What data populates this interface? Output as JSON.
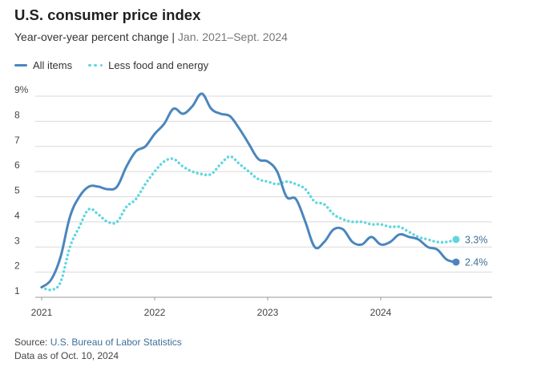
{
  "chart_data": {
    "type": "line",
    "title": "U.S. consumer price index",
    "subtitle": "Year-over-year percent change",
    "subtitle_range": "Jan. 2021–Sept. 2024",
    "ylim": [
      1,
      9
    ],
    "y_ticks": [
      "1",
      "2",
      "3",
      "4",
      "5",
      "6",
      "7",
      "8",
      "9%"
    ],
    "y_tick_values": [
      1,
      2,
      3,
      4,
      5,
      6,
      7,
      8,
      9
    ],
    "x_ticks": [
      "2021",
      "2022",
      "2023",
      "2024"
    ],
    "x_tick_values": [
      2021,
      2022,
      2023,
      2024
    ],
    "x": [
      "2021-01",
      "2021-02",
      "2021-03",
      "2021-04",
      "2021-05",
      "2021-06",
      "2021-07",
      "2021-08",
      "2021-09",
      "2021-10",
      "2021-11",
      "2021-12",
      "2022-01",
      "2022-02",
      "2022-03",
      "2022-04",
      "2022-05",
      "2022-06",
      "2022-07",
      "2022-08",
      "2022-09",
      "2022-10",
      "2022-11",
      "2022-12",
      "2023-01",
      "2023-02",
      "2023-03",
      "2023-04",
      "2023-05",
      "2023-06",
      "2023-07",
      "2023-08",
      "2023-09",
      "2023-10",
      "2023-11",
      "2023-12",
      "2024-01",
      "2024-02",
      "2024-03",
      "2024-04",
      "2024-05",
      "2024-06",
      "2024-07",
      "2024-08",
      "2024-09"
    ],
    "grid": true,
    "legend": "top-left",
    "series": [
      {
        "name": "All items",
        "color": "#4a86bd",
        "style": "solid",
        "values": [
          1.4,
          1.7,
          2.6,
          4.2,
          5.0,
          5.4,
          5.4,
          5.3,
          5.4,
          6.2,
          6.8,
          7.0,
          7.5,
          7.9,
          8.5,
          8.3,
          8.6,
          9.1,
          8.5,
          8.3,
          8.2,
          7.7,
          7.1,
          6.5,
          6.4,
          6.0,
          5.0,
          4.9,
          4.0,
          3.0,
          3.2,
          3.7,
          3.7,
          3.2,
          3.1,
          3.4,
          3.1,
          3.2,
          3.5,
          3.4,
          3.3,
          3.0,
          2.9,
          2.5,
          2.4
        ],
        "end_label": "2.4%"
      },
      {
        "name": "Less food and energy",
        "color": "#5fd6df",
        "style": "dotted",
        "values": [
          1.4,
          1.3,
          1.6,
          3.0,
          3.8,
          4.5,
          4.3,
          4.0,
          4.0,
          4.6,
          4.9,
          5.5,
          6.0,
          6.4,
          6.5,
          6.2,
          6.0,
          5.9,
          5.9,
          6.3,
          6.6,
          6.3,
          6.0,
          5.7,
          5.6,
          5.5,
          5.6,
          5.5,
          5.3,
          4.8,
          4.7,
          4.3,
          4.1,
          4.0,
          4.0,
          3.9,
          3.9,
          3.8,
          3.8,
          3.6,
          3.4,
          3.3,
          3.2,
          3.2,
          3.3
        ],
        "end_label": "3.3%"
      }
    ]
  },
  "source": {
    "prefix": "Source: ",
    "link": "U.S. Bureau of Labor Statistics",
    "note": "Data as of Oct. 10, 2024"
  },
  "colors": {
    "all_items": "#4a86bd",
    "core": "#5fd6df",
    "grid": "#d9d9d9",
    "axis_text": "#444444"
  }
}
